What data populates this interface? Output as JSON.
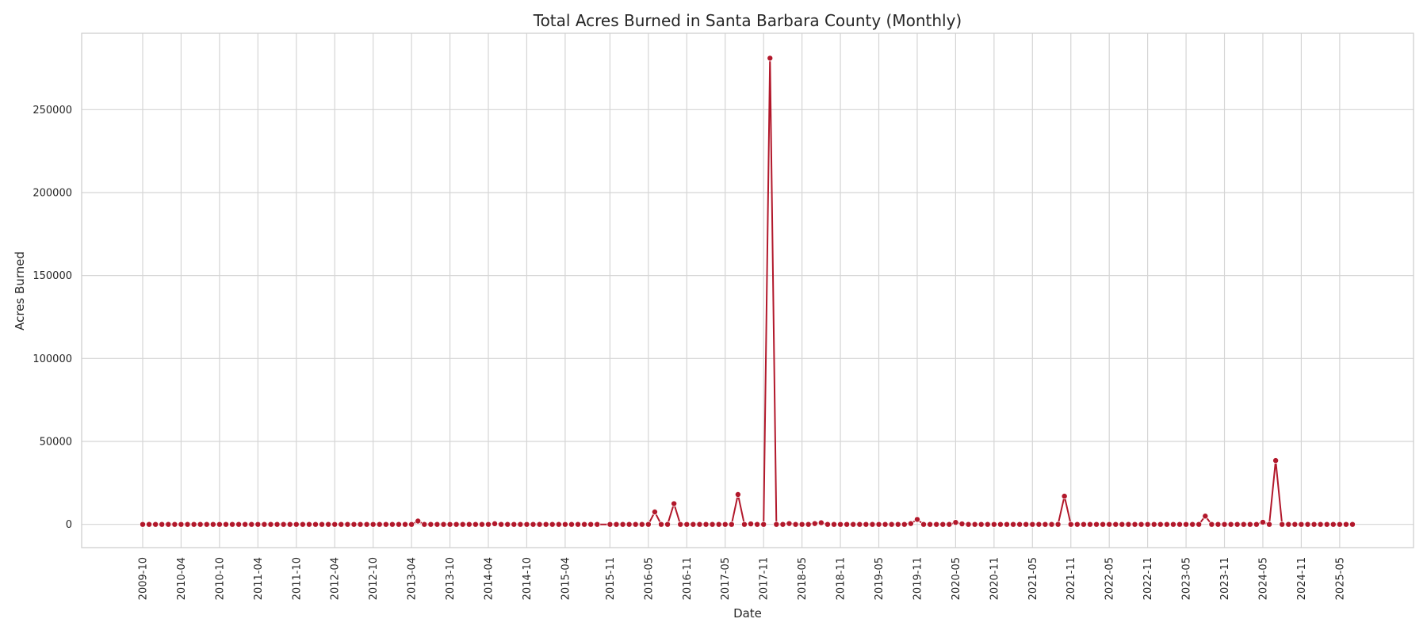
{
  "chart_data": {
    "type": "line",
    "title": "Total Acres Burned in Santa Barbara County (Monthly)",
    "xlabel": "Date",
    "ylabel": "Acres Burned",
    "ylim": [
      -14000,
      296000
    ],
    "yticks": [
      0,
      50000,
      100000,
      150000,
      200000,
      250000
    ],
    "xticks": [
      "2009-10",
      "2010-04",
      "2010-10",
      "2011-04",
      "2011-10",
      "2012-04",
      "2012-10",
      "2013-04",
      "2013-10",
      "2014-04",
      "2014-10",
      "2015-04",
      "2015-11",
      "2016-05",
      "2016-11",
      "2017-05",
      "2017-11",
      "2018-05",
      "2018-11",
      "2019-05",
      "2019-11",
      "2020-05",
      "2020-11",
      "2021-05",
      "2021-11",
      "2022-05",
      "2022-11",
      "2023-05",
      "2023-11",
      "2024-05",
      "2024-11",
      "2025-05"
    ],
    "grid": true,
    "legend": "none",
    "line_color": "#b2182b",
    "series": [
      {
        "points": [
          [
            "2009-10",
            0
          ],
          [
            "2009-11",
            0
          ],
          [
            "2009-12",
            0
          ],
          [
            "2010-01",
            0
          ],
          [
            "2010-02",
            0
          ],
          [
            "2010-03",
            0
          ],
          [
            "2010-04",
            0
          ],
          [
            "2010-05",
            0
          ],
          [
            "2010-06",
            0
          ],
          [
            "2010-07",
            0
          ],
          [
            "2010-08",
            0
          ],
          [
            "2010-09",
            0
          ],
          [
            "2010-10",
            0
          ],
          [
            "2010-11",
            0
          ],
          [
            "2010-12",
            0
          ],
          [
            "2011-01",
            0
          ],
          [
            "2011-02",
            0
          ],
          [
            "2011-03",
            0
          ],
          [
            "2011-04",
            0
          ],
          [
            "2011-05",
            0
          ],
          [
            "2011-06",
            0
          ],
          [
            "2011-07",
            0
          ],
          [
            "2011-08",
            0
          ],
          [
            "2011-09",
            0
          ],
          [
            "2011-10",
            0
          ],
          [
            "2011-11",
            0
          ],
          [
            "2011-12",
            0
          ],
          [
            "2012-01",
            0
          ],
          [
            "2012-02",
            0
          ],
          [
            "2012-03",
            0
          ],
          [
            "2012-04",
            0
          ],
          [
            "2012-05",
            0
          ],
          [
            "2012-06",
            0
          ],
          [
            "2012-07",
            0
          ],
          [
            "2012-08",
            0
          ],
          [
            "2012-09",
            0
          ],
          [
            "2012-10",
            0
          ],
          [
            "2012-11",
            0
          ],
          [
            "2012-12",
            0
          ],
          [
            "2013-01",
            0
          ],
          [
            "2013-02",
            0
          ],
          [
            "2013-03",
            0
          ],
          [
            "2013-04",
            0
          ],
          [
            "2013-05",
            2000
          ],
          [
            "2013-06",
            0
          ],
          [
            "2013-07",
            0
          ],
          [
            "2013-08",
            0
          ],
          [
            "2013-09",
            0
          ],
          [
            "2013-10",
            0
          ],
          [
            "2013-11",
            0
          ],
          [
            "2013-12",
            0
          ],
          [
            "2014-01",
            0
          ],
          [
            "2014-02",
            0
          ],
          [
            "2014-03",
            0
          ],
          [
            "2014-04",
            0
          ],
          [
            "2014-05",
            400
          ],
          [
            "2014-06",
            0
          ],
          [
            "2014-07",
            0
          ],
          [
            "2014-08",
            0
          ],
          [
            "2014-09",
            0
          ],
          [
            "2014-10",
            0
          ],
          [
            "2014-11",
            0
          ],
          [
            "2014-12",
            0
          ],
          [
            "2015-01",
            0
          ],
          [
            "2015-02",
            0
          ],
          [
            "2015-03",
            0
          ],
          [
            "2015-04",
            0
          ],
          [
            "2015-05",
            0
          ],
          [
            "2015-06",
            0
          ],
          [
            "2015-07",
            0
          ],
          [
            "2015-08",
            0
          ],
          [
            "2015-09",
            0
          ],
          [
            "2015-11",
            0
          ],
          [
            "2015-12",
            0
          ],
          [
            "2016-01",
            0
          ],
          [
            "2016-02",
            0
          ],
          [
            "2016-03",
            0
          ],
          [
            "2016-04",
            0
          ],
          [
            "2016-05",
            0
          ],
          [
            "2016-06",
            7500
          ],
          [
            "2016-07",
            0
          ],
          [
            "2016-08",
            0
          ],
          [
            "2016-09",
            12500
          ],
          [
            "2016-10",
            0
          ],
          [
            "2016-11",
            0
          ],
          [
            "2016-12",
            0
          ],
          [
            "2017-01",
            0
          ],
          [
            "2017-02",
            0
          ],
          [
            "2017-03",
            0
          ],
          [
            "2017-04",
            0
          ],
          [
            "2017-05",
            0
          ],
          [
            "2017-06",
            0
          ],
          [
            "2017-07",
            18000
          ],
          [
            "2017-08",
            0
          ],
          [
            "2017-09",
            300
          ],
          [
            "2017-10",
            0
          ],
          [
            "2017-11",
            0
          ],
          [
            "2017-12",
            281000
          ],
          [
            "2018-01",
            0
          ],
          [
            "2018-02",
            0
          ],
          [
            "2018-03",
            500
          ],
          [
            "2018-04",
            0
          ],
          [
            "2018-05",
            0
          ],
          [
            "2018-06",
            0
          ],
          [
            "2018-07",
            500
          ],
          [
            "2018-08",
            1000
          ],
          [
            "2018-09",
            0
          ],
          [
            "2018-10",
            0
          ],
          [
            "2018-11",
            0
          ],
          [
            "2018-12",
            0
          ],
          [
            "2019-01",
            0
          ],
          [
            "2019-02",
            0
          ],
          [
            "2019-03",
            0
          ],
          [
            "2019-04",
            0
          ],
          [
            "2019-05",
            0
          ],
          [
            "2019-06",
            0
          ],
          [
            "2019-07",
            0
          ],
          [
            "2019-08",
            0
          ],
          [
            "2019-09",
            0
          ],
          [
            "2019-10",
            500
          ],
          [
            "2019-11",
            3000
          ],
          [
            "2019-12",
            0
          ],
          [
            "2020-01",
            0
          ],
          [
            "2020-02",
            0
          ],
          [
            "2020-03",
            0
          ],
          [
            "2020-04",
            0
          ],
          [
            "2020-05",
            1200
          ],
          [
            "2020-06",
            300
          ],
          [
            "2020-07",
            0
          ],
          [
            "2020-08",
            0
          ],
          [
            "2020-09",
            0
          ],
          [
            "2020-10",
            0
          ],
          [
            "2020-11",
            0
          ],
          [
            "2020-12",
            0
          ],
          [
            "2021-01",
            0
          ],
          [
            "2021-02",
            0
          ],
          [
            "2021-03",
            0
          ],
          [
            "2021-04",
            0
          ],
          [
            "2021-05",
            0
          ],
          [
            "2021-06",
            0
          ],
          [
            "2021-07",
            0
          ],
          [
            "2021-08",
            0
          ],
          [
            "2021-09",
            0
          ],
          [
            "2021-10",
            17000
          ],
          [
            "2021-11",
            0
          ],
          [
            "2021-12",
            0
          ],
          [
            "2022-01",
            0
          ],
          [
            "2022-02",
            0
          ],
          [
            "2022-03",
            0
          ],
          [
            "2022-04",
            0
          ],
          [
            "2022-05",
            0
          ],
          [
            "2022-06",
            0
          ],
          [
            "2022-07",
            0
          ],
          [
            "2022-08",
            0
          ],
          [
            "2022-09",
            0
          ],
          [
            "2022-10",
            0
          ],
          [
            "2022-11",
            0
          ],
          [
            "2022-12",
            0
          ],
          [
            "2023-01",
            0
          ],
          [
            "2023-02",
            0
          ],
          [
            "2023-03",
            0
          ],
          [
            "2023-04",
            0
          ],
          [
            "2023-05",
            0
          ],
          [
            "2023-06",
            0
          ],
          [
            "2023-07",
            0
          ],
          [
            "2023-08",
            5000
          ],
          [
            "2023-09",
            0
          ],
          [
            "2023-10",
            0
          ],
          [
            "2023-11",
            0
          ],
          [
            "2023-12",
            0
          ],
          [
            "2024-01",
            0
          ],
          [
            "2024-02",
            0
          ],
          [
            "2024-03",
            0
          ],
          [
            "2024-04",
            0
          ],
          [
            "2024-05",
            1300
          ],
          [
            "2024-06",
            0
          ],
          [
            "2024-07",
            38500
          ],
          [
            "2024-08",
            0
          ],
          [
            "2024-09",
            0
          ],
          [
            "2024-10",
            0
          ],
          [
            "2024-11",
            0
          ],
          [
            "2024-12",
            0
          ],
          [
            "2025-01",
            0
          ],
          [
            "2025-02",
            0
          ],
          [
            "2025-03",
            0
          ],
          [
            "2025-04",
            0
          ],
          [
            "2025-05",
            0
          ],
          [
            "2025-06",
            0
          ],
          [
            "2025-07",
            0
          ]
        ]
      }
    ]
  }
}
